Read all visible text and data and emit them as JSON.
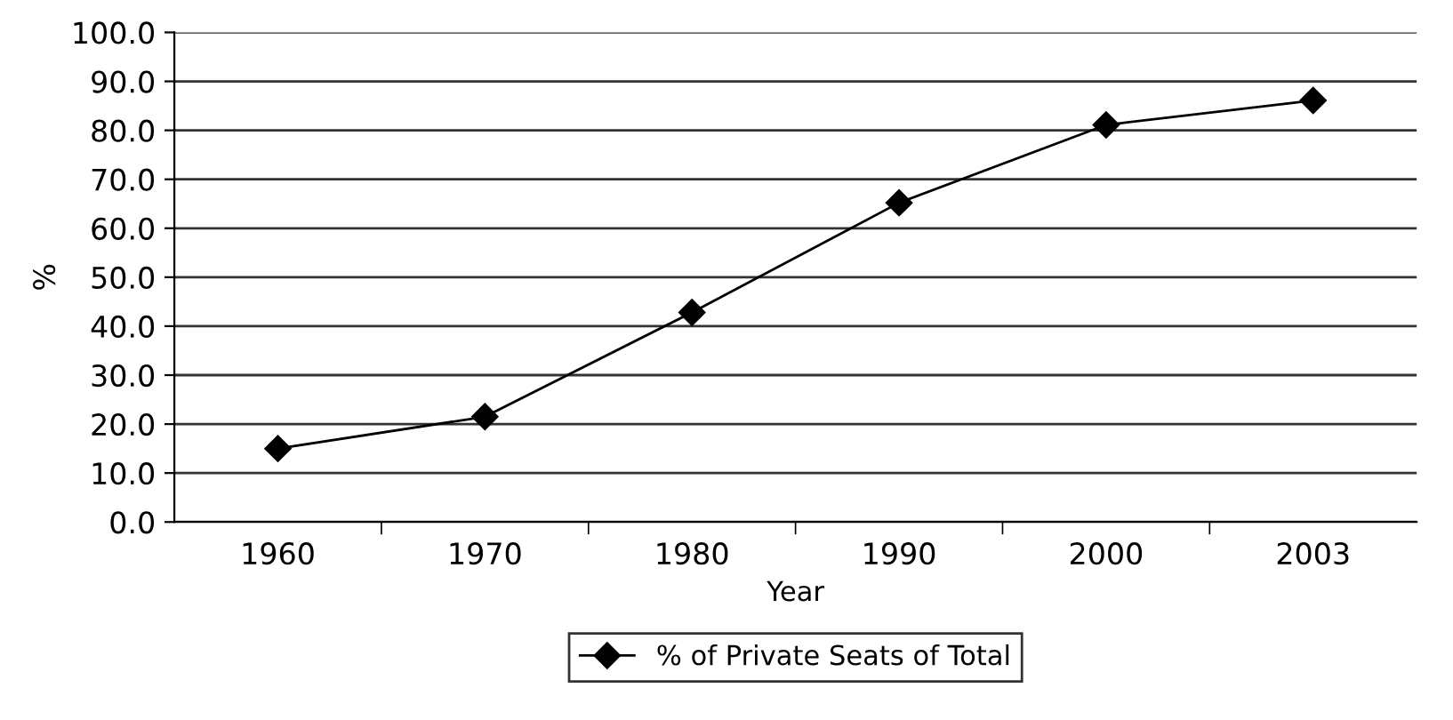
{
  "chart_data": {
    "type": "line",
    "xlabel": "Year",
    "ylabel": "%",
    "categories": [
      "1960",
      "1970",
      "1980",
      "1990",
      "2000",
      "2003"
    ],
    "series": [
      {
        "name": "% of Private Seats of Total",
        "color": "#000000",
        "values": [
          15.0,
          21.5,
          42.8,
          65.2,
          81.1,
          86.1
        ]
      }
    ],
    "ylim": [
      0,
      100
    ],
    "yticks": [
      {
        "value": 0,
        "label": "0.0"
      },
      {
        "value": 10,
        "label": "10.0"
      },
      {
        "value": 20,
        "label": "20.0"
      },
      {
        "value": 30,
        "label": "30.0"
      },
      {
        "value": 40,
        "label": "40.0"
      },
      {
        "value": 50,
        "label": "50.0"
      },
      {
        "value": 60,
        "label": "60.0"
      },
      {
        "value": 70,
        "label": "70.0"
      },
      {
        "value": 80,
        "label": "80.0"
      },
      {
        "value": 90,
        "label": "90.0"
      },
      {
        "value": 100,
        "label": "100.0"
      }
    ],
    "grid": "y",
    "legend": "bottom",
    "marker": "diamond",
    "line_style": "solid"
  }
}
